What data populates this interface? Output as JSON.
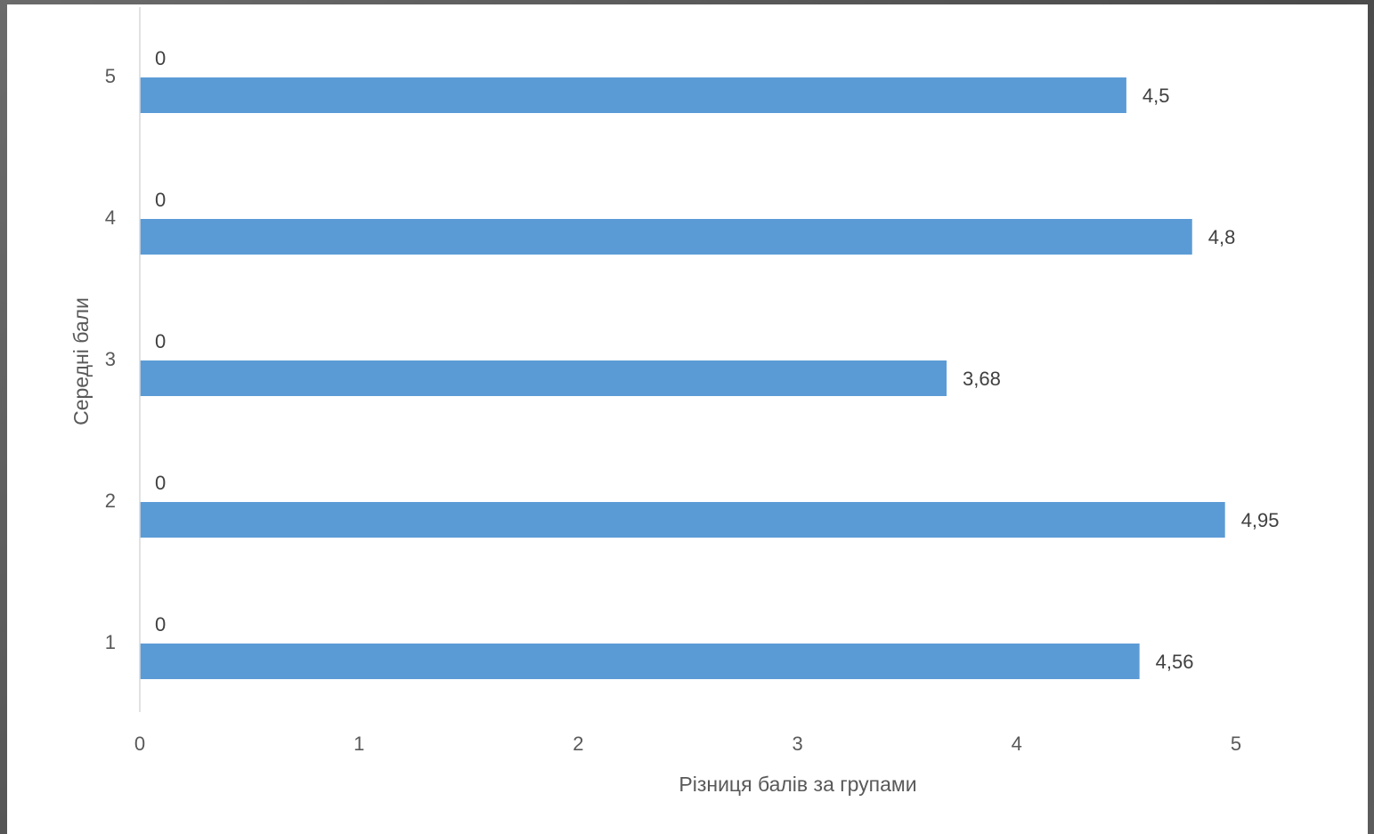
{
  "colors": {
    "bar": "#5b9bd5",
    "axis_line": "#d9d9d9",
    "background": "#ffffff"
  },
  "chart_data": {
    "type": "bar",
    "orientation": "horizontal",
    "categories": [
      "1",
      "2",
      "3",
      "4",
      "5"
    ],
    "series": [
      {
        "values": [
          0,
          0,
          0,
          0,
          0
        ],
        "data_labels": [
          "0",
          "0",
          "0",
          "0",
          "0"
        ]
      },
      {
        "values": [
          4.56,
          4.95,
          3.68,
          4.8,
          4.5
        ],
        "data_labels": [
          "4,56",
          "4,95",
          "3,68",
          "4,8",
          "4,5"
        ]
      }
    ],
    "xlabel": "Різниця балів за групами",
    "ylabel": "Середні бали",
    "xlim": [
      0,
      5
    ],
    "x_ticks": [
      "0",
      "1",
      "2",
      "3",
      "4",
      "5"
    ],
    "grid": false,
    "legend": "none"
  }
}
